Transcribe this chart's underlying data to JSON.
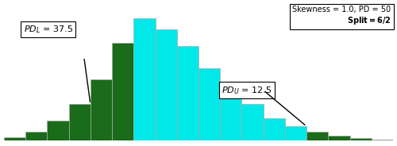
{
  "bar_heights": [
    1,
    3,
    7,
    13,
    22,
    35,
    44,
    40,
    34,
    26,
    19,
    13,
    8,
    5,
    3,
    1.5,
    0.7,
    0.3
  ],
  "bar_colors": [
    "#1a6b1a",
    "#1a6b1a",
    "#1a6b1a",
    "#1a6b1a",
    "#1a6b1a",
    "#1a6b1a",
    "#00e8e8",
    "#00e8e8",
    "#00e8e8",
    "#00e8e8",
    "#00e8e8",
    "#00e8e8",
    "#00e8e8",
    "#00e8e8",
    "#1a6b1a",
    "#1a6b1a",
    "#1a6b1a",
    "#1a6b1a"
  ],
  "edge_color": "#aaaaaa",
  "background_color": "#ffffff",
  "label_PD_L_val": " = 37.5",
  "label_PD_U_val": " = 12.5",
  "info_line1": "Skewness = 1.0, PD = 50",
  "info_line2": "Split = 6/2",
  "ylim": [
    0,
    50
  ],
  "bar_width": 1.0
}
